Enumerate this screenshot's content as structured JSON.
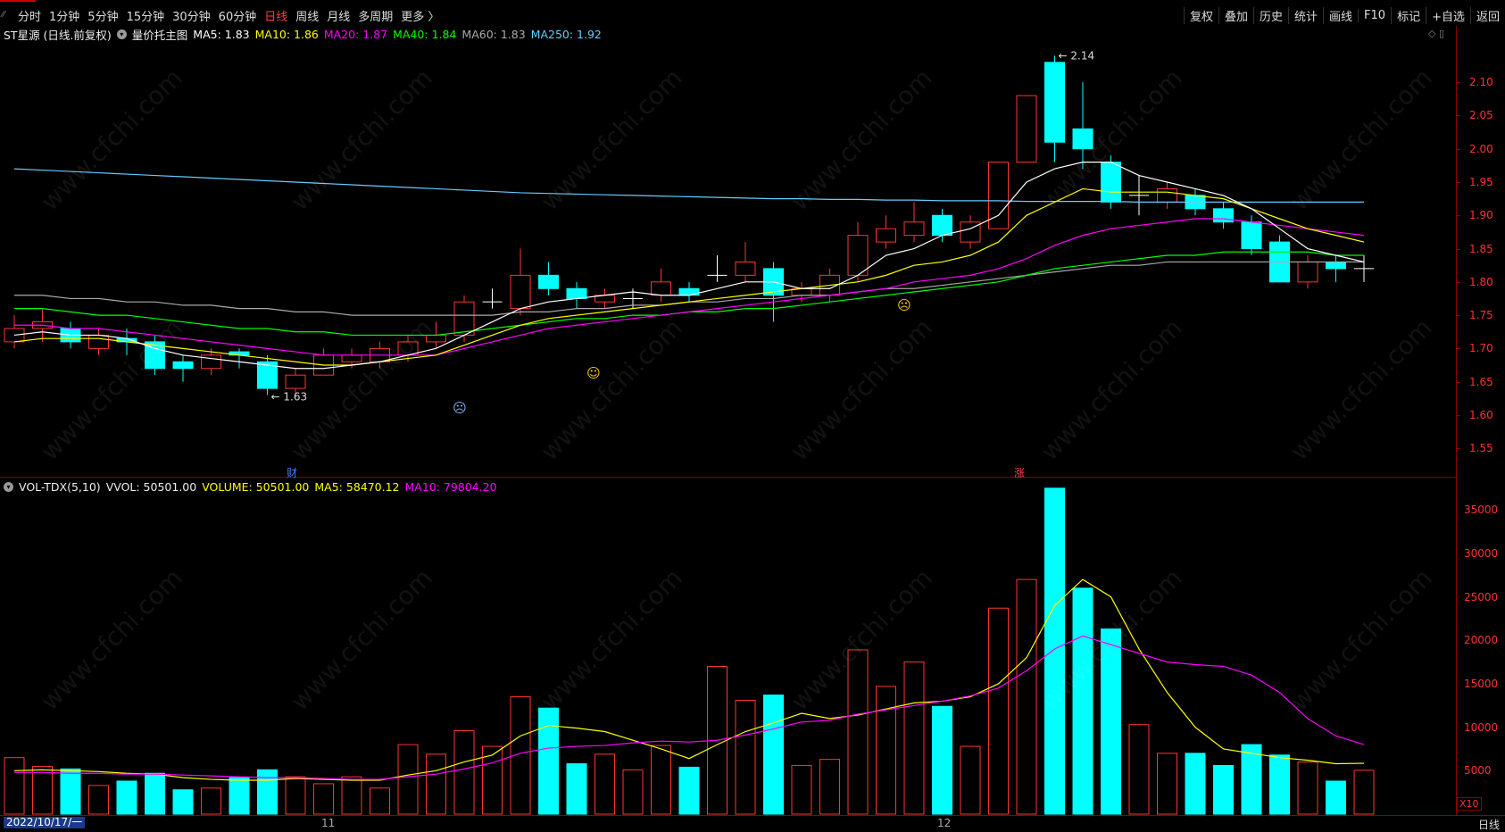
{
  "toolbar": {
    "left": [
      "分时",
      "1分钟",
      "5分钟",
      "15分钟",
      "30分钟",
      "60分钟",
      "日线",
      "周线",
      "月线",
      "多周期",
      "更多 〉"
    ],
    "active_index": 6,
    "right": [
      "复权",
      "叠加",
      "历史",
      "统计",
      "画线",
      "F10",
      "标记",
      "+自选",
      "返回"
    ]
  },
  "info": {
    "stock": "ST星源 (日线.前复权)",
    "indicator": "量价托主图",
    "ma5": "MA5: 1.83",
    "ma10": "MA10: 1.86",
    "ma20": "MA20: 1.87",
    "ma40": "MA40: 1.84",
    "ma60": "MA60: 1.83",
    "ma250": "MA250: 1.92"
  },
  "vol_info": {
    "name": "VOL-TDX(5,10)",
    "vvol": "VVOL: 50501.00",
    "volume": "VOLUME: 50501.00",
    "ma5": "MA5: 58470.12",
    "ma10": "MA10: 79804.20"
  },
  "colors": {
    "up": "#ff3333",
    "down": "#00ffff",
    "ma5": "#ffffff",
    "ma10": "#ffff00",
    "ma20": "#ff00ff",
    "ma40": "#00ff00",
    "ma60": "#aaaaaa",
    "ma250": "#66ccff"
  },
  "price_axis": [
    "2.10",
    "2.05",
    "2.00",
    "1.95",
    "1.90",
    "1.85",
    "1.80",
    "1.75",
    "1.70",
    "1.65",
    "1.60",
    "1.55"
  ],
  "vol_axis": [
    "35000",
    "30000",
    "25000",
    "20000",
    "15000",
    "10000",
    "5000"
  ],
  "annotations": {
    "high": "2.14",
    "low": "1.63",
    "cai": "财",
    "zhang": "涨"
  },
  "bottom": {
    "date": "2022/10/17/一",
    "nov": "11",
    "dec": "12",
    "timeframe": "日线",
    "x10": "X10"
  },
  "watermark": "www.cfchi.com",
  "chart_data": {
    "type": "candlestick",
    "ylim": [
      1.51,
      2.17
    ],
    "vol_ylim": [
      0,
      38000
    ],
    "candles": [
      {
        "o": 1.71,
        "c": 1.73,
        "h": 1.75,
        "l": 1.7,
        "v": 6500
      },
      {
        "o": 1.73,
        "c": 1.74,
        "h": 1.76,
        "l": 1.71,
        "v": 5500
      },
      {
        "o": 1.73,
        "c": 1.71,
        "h": 1.74,
        "l": 1.7,
        "v": 5200
      },
      {
        "o": 1.7,
        "c": 1.72,
        "h": 1.73,
        "l": 1.69,
        "v": 3300
      },
      {
        "o": 1.715,
        "c": 1.71,
        "h": 1.73,
        "l": 1.69,
        "v": 3800
      },
      {
        "o": 1.71,
        "c": 1.67,
        "h": 1.72,
        "l": 1.66,
        "v": 4700
      },
      {
        "o": 1.68,
        "c": 1.67,
        "h": 1.69,
        "l": 1.65,
        "v": 2800
      },
      {
        "o": 1.67,
        "c": 1.69,
        "h": 1.7,
        "l": 1.66,
        "v": 3000
      },
      {
        "o": 1.695,
        "c": 1.69,
        "h": 1.7,
        "l": 1.67,
        "v": 4200
      },
      {
        "o": 1.68,
        "c": 1.64,
        "h": 1.69,
        "l": 1.63,
        "v": 5100
      },
      {
        "o": 1.64,
        "c": 1.66,
        "h": 1.67,
        "l": 1.63,
        "v": 4300
      },
      {
        "o": 1.66,
        "c": 1.69,
        "h": 1.7,
        "l": 1.66,
        "v": 3500
      },
      {
        "o": 1.68,
        "c": 1.69,
        "h": 1.7,
        "l": 1.67,
        "v": 4300
      },
      {
        "o": 1.68,
        "c": 1.7,
        "h": 1.71,
        "l": 1.67,
        "v": 3000
      },
      {
        "o": 1.69,
        "c": 1.71,
        "h": 1.72,
        "l": 1.68,
        "v": 8000
      },
      {
        "o": 1.71,
        "c": 1.72,
        "h": 1.74,
        "l": 1.7,
        "v": 6900
      },
      {
        "o": 1.72,
        "c": 1.77,
        "h": 1.78,
        "l": 1.71,
        "v": 9600
      },
      {
        "o": 1.77,
        "c": 1.77,
        "h": 1.79,
        "l": 1.76,
        "v": 7800
      },
      {
        "o": 1.76,
        "c": 1.81,
        "h": 1.85,
        "l": 1.75,
        "v": 13500
      },
      {
        "o": 1.81,
        "c": 1.79,
        "h": 1.83,
        "l": 1.78,
        "v": 12200
      },
      {
        "o": 1.79,
        "c": 1.775,
        "h": 1.8,
        "l": 1.76,
        "v": 5800
      },
      {
        "o": 1.77,
        "c": 1.78,
        "h": 1.79,
        "l": 1.76,
        "v": 6900
      },
      {
        "o": 1.775,
        "c": 1.775,
        "h": 1.79,
        "l": 1.76,
        "v": 5100
      },
      {
        "o": 1.78,
        "c": 1.8,
        "h": 1.82,
        "l": 1.77,
        "v": 7900
      },
      {
        "o": 1.79,
        "c": 1.78,
        "h": 1.8,
        "l": 1.77,
        "v": 5400
      },
      {
        "o": 1.81,
        "c": 1.81,
        "h": 1.84,
        "l": 1.8,
        "v": 17000
      },
      {
        "o": 1.81,
        "c": 1.83,
        "h": 1.86,
        "l": 1.8,
        "v": 13100
      },
      {
        "o": 1.82,
        "c": 1.78,
        "h": 1.83,
        "l": 1.74,
        "v": 13700
      },
      {
        "o": 1.78,
        "c": 1.79,
        "h": 1.8,
        "l": 1.77,
        "v": 5600
      },
      {
        "o": 1.78,
        "c": 1.81,
        "h": 1.82,
        "l": 1.77,
        "v": 6300
      },
      {
        "o": 1.81,
        "c": 1.87,
        "h": 1.89,
        "l": 1.8,
        "v": 18900
      },
      {
        "o": 1.86,
        "c": 1.88,
        "h": 1.9,
        "l": 1.85,
        "v": 14700
      },
      {
        "o": 1.87,
        "c": 1.89,
        "h": 1.92,
        "l": 1.86,
        "v": 17500
      },
      {
        "o": 1.9,
        "c": 1.87,
        "h": 1.91,
        "l": 1.86,
        "v": 12400
      },
      {
        "o": 1.86,
        "c": 1.89,
        "h": 1.9,
        "l": 1.85,
        "v": 7800
      },
      {
        "o": 1.88,
        "c": 1.98,
        "h": 1.98,
        "l": 1.88,
        "v": 23700
      },
      {
        "o": 1.98,
        "c": 2.08,
        "h": 2.08,
        "l": 1.98,
        "v": 27000
      },
      {
        "o": 2.13,
        "c": 2.01,
        "h": 2.14,
        "l": 1.98,
        "v": 37500
      },
      {
        "o": 2.03,
        "c": 2.0,
        "h": 2.1,
        "l": 1.97,
        "v": 26000
      },
      {
        "o": 1.98,
        "c": 1.92,
        "h": 1.99,
        "l": 1.91,
        "v": 21300
      },
      {
        "o": 1.93,
        "c": 1.93,
        "h": 1.96,
        "l": 1.9,
        "v": 10300
      },
      {
        "o": 1.92,
        "c": 1.94,
        "h": 1.95,
        "l": 1.91,
        "v": 7000
      },
      {
        "o": 1.93,
        "c": 1.91,
        "h": 1.94,
        "l": 1.9,
        "v": 7000
      },
      {
        "o": 1.91,
        "c": 1.89,
        "h": 1.92,
        "l": 1.88,
        "v": 5600
      },
      {
        "o": 1.89,
        "c": 1.85,
        "h": 1.9,
        "l": 1.84,
        "v": 8000
      },
      {
        "o": 1.86,
        "c": 1.8,
        "h": 1.87,
        "l": 1.8,
        "v": 6800
      },
      {
        "o": 1.8,
        "c": 1.83,
        "h": 1.84,
        "l": 1.79,
        "v": 6000
      },
      {
        "o": 1.83,
        "c": 1.82,
        "h": 1.84,
        "l": 1.8,
        "v": 3800
      },
      {
        "o": 1.82,
        "c": 1.82,
        "h": 1.84,
        "l": 1.8,
        "v": 5050
      }
    ],
    "ma5": [
      1.72,
      1.725,
      1.72,
      1.72,
      1.715,
      1.7,
      1.69,
      1.685,
      1.68,
      1.675,
      1.67,
      1.67,
      1.675,
      1.68,
      1.69,
      1.7,
      1.72,
      1.74,
      1.76,
      1.77,
      1.775,
      1.78,
      1.785,
      1.78,
      1.78,
      1.79,
      1.8,
      1.8,
      1.79,
      1.79,
      1.81,
      1.84,
      1.85,
      1.87,
      1.88,
      1.9,
      1.95,
      1.97,
      1.98,
      1.98,
      1.96,
      1.95,
      1.94,
      1.93,
      1.91,
      1.88,
      1.85,
      1.84,
      1.83
    ],
    "ma10": [
      1.71,
      1.715,
      1.715,
      1.715,
      1.71,
      1.705,
      1.7,
      1.695,
      1.69,
      1.685,
      1.68,
      1.675,
      1.675,
      1.68,
      1.685,
      1.69,
      1.705,
      1.72,
      1.735,
      1.745,
      1.75,
      1.755,
      1.76,
      1.765,
      1.77,
      1.775,
      1.78,
      1.785,
      1.79,
      1.795,
      1.8,
      1.81,
      1.825,
      1.83,
      1.84,
      1.86,
      1.9,
      1.92,
      1.94,
      1.935,
      1.935,
      1.935,
      1.93,
      1.925,
      1.91,
      1.895,
      1.88,
      1.87,
      1.86
    ],
    "ma20": [
      1.735,
      1.735,
      1.73,
      1.73,
      1.725,
      1.72,
      1.715,
      1.71,
      1.705,
      1.7,
      1.695,
      1.69,
      1.69,
      1.69,
      1.69,
      1.69,
      1.7,
      1.71,
      1.72,
      1.73,
      1.735,
      1.74,
      1.745,
      1.75,
      1.755,
      1.76,
      1.765,
      1.77,
      1.775,
      1.78,
      1.785,
      1.79,
      1.8,
      1.805,
      1.81,
      1.82,
      1.835,
      1.855,
      1.87,
      1.88,
      1.885,
      1.89,
      1.895,
      1.895,
      1.89,
      1.885,
      1.88,
      1.875,
      1.87
    ],
    "ma40": [
      1.76,
      1.76,
      1.755,
      1.75,
      1.75,
      1.745,
      1.74,
      1.735,
      1.73,
      1.73,
      1.725,
      1.725,
      1.72,
      1.72,
      1.72,
      1.72,
      1.725,
      1.73,
      1.735,
      1.74,
      1.745,
      1.745,
      1.75,
      1.75,
      1.755,
      1.755,
      1.76,
      1.76,
      1.765,
      1.77,
      1.775,
      1.78,
      1.785,
      1.79,
      1.795,
      1.8,
      1.81,
      1.82,
      1.825,
      1.83,
      1.835,
      1.84,
      1.84,
      1.845,
      1.845,
      1.845,
      1.845,
      1.84,
      1.84
    ],
    "ma60": [
      1.78,
      1.78,
      1.775,
      1.775,
      1.77,
      1.77,
      1.765,
      1.765,
      1.76,
      1.76,
      1.755,
      1.755,
      1.75,
      1.75,
      1.75,
      1.75,
      1.75,
      1.75,
      1.755,
      1.755,
      1.76,
      1.76,
      1.765,
      1.765,
      1.77,
      1.77,
      1.775,
      1.775,
      1.78,
      1.78,
      1.785,
      1.79,
      1.79,
      1.795,
      1.8,
      1.805,
      1.81,
      1.815,
      1.82,
      1.825,
      1.825,
      1.83,
      1.83,
      1.83,
      1.83,
      1.83,
      1.83,
      1.83,
      1.83
    ],
    "ma250": [
      1.97,
      1.968,
      1.966,
      1.964,
      1.962,
      1.96,
      1.958,
      1.956,
      1.954,
      1.952,
      1.95,
      1.948,
      1.946,
      1.944,
      1.942,
      1.94,
      1.938,
      1.936,
      1.934,
      1.933,
      1.932,
      1.931,
      1.93,
      1.929,
      1.928,
      1.927,
      1.926,
      1.925,
      1.925,
      1.924,
      1.924,
      1.923,
      1.923,
      1.922,
      1.922,
      1.922,
      1.921,
      1.921,
      1.921,
      1.921,
      1.92,
      1.92,
      1.92,
      1.92,
      1.92,
      1.92,
      1.92,
      1.92,
      1.92
    ],
    "vma5": [
      5000,
      5100,
      5000,
      4900,
      4700,
      4600,
      4200,
      4000,
      3900,
      3900,
      4100,
      4000,
      3900,
      3900,
      4500,
      5000,
      6000,
      6800,
      9000,
      10200,
      9900,
      9500,
      8500,
      7500,
      6400,
      8000,
      9500,
      10500,
      11600,
      11000,
      11400,
      12100,
      12800,
      13000,
      13500,
      15000,
      18000,
      24000,
      27000,
      25000,
      19000,
      14000,
      10000,
      7500,
      7000,
      6500,
      6200,
      5800,
      5850
    ],
    "vma10": [
      4800,
      4800,
      4700,
      4700,
      4600,
      4600,
      4500,
      4400,
      4300,
      4200,
      4200,
      4100,
      4000,
      4000,
      4300,
      4600,
      5200,
      5900,
      7000,
      7600,
      7800,
      7900,
      8200,
      8400,
      8300,
      8500,
      9100,
      9800,
      10600,
      10800,
      11500,
      12000,
      12500,
      13000,
      13600,
      14500,
      16500,
      19000,
      20500,
      19500,
      18500,
      17500,
      17200,
      17000,
      16000,
      14000,
      11000,
      9000,
      8000
    ]
  }
}
